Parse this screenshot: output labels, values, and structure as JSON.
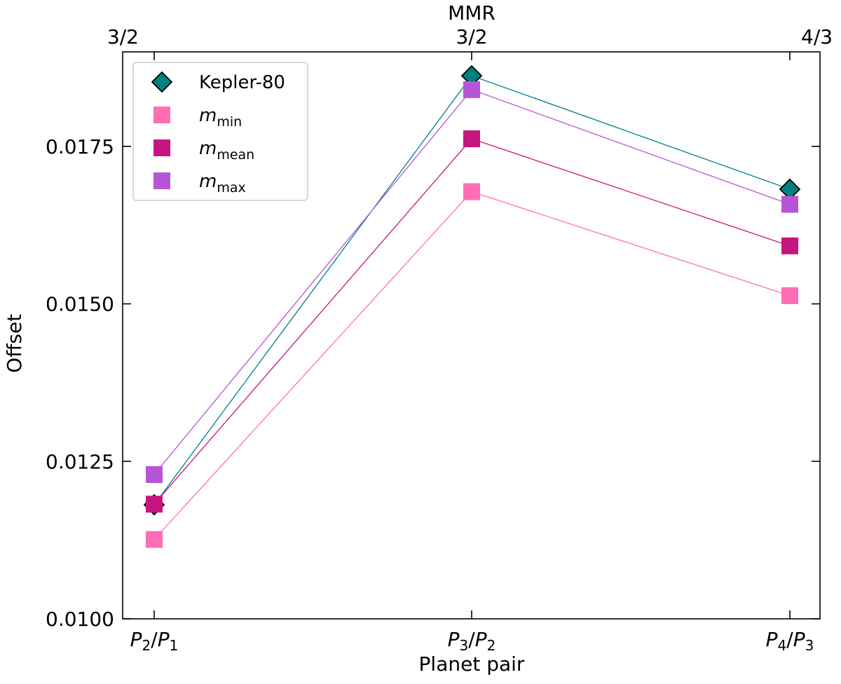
{
  "chart_data": {
    "type": "line",
    "xlabel": "Planet pair",
    "ylabel": "Offset",
    "top_axis_label": "MMR",
    "categories": [
      {
        "base": "P",
        "sub1": "2",
        "sep": "/",
        "base2": "P",
        "sub2": "1"
      },
      {
        "base": "P",
        "sub1": "3",
        "sep": "/",
        "base2": "P",
        "sub2": "2"
      },
      {
        "base": "P",
        "sub1": "4",
        "sep": "/",
        "base2": "P",
        "sub2": "3"
      }
    ],
    "top_ticks": [
      "3/2",
      "3/2",
      "4/3"
    ],
    "ylim": [
      0.01,
      0.019
    ],
    "yticks": [
      "0.0100",
      "0.0125",
      "0.0150",
      "0.0175"
    ],
    "ytick_values": [
      0.01,
      0.0125,
      0.015,
      0.0175
    ],
    "legend_position": "upper-left",
    "grid": false,
    "series": [
      {
        "id": "kepler",
        "name": "Kepler-80",
        "name_main": "Kepler-80",
        "name_sub": "",
        "marker": "diamond",
        "color": "#008080",
        "values": [
          0.01181,
          0.01862,
          0.01682
        ]
      },
      {
        "id": "mmax",
        "name": "m_max",
        "name_main": "m",
        "name_sub": "max",
        "marker": "square",
        "color": "#b656d6",
        "values": [
          0.01229,
          0.0184,
          0.01658
        ]
      },
      {
        "id": "mmean",
        "name": "m_mean",
        "name_main": "m",
        "name_sub": "mean",
        "marker": "square",
        "color": "#c7157f",
        "values": [
          0.01182,
          0.01762,
          0.01592
        ]
      },
      {
        "id": "mmin",
        "name": "m_min",
        "name_main": "m",
        "name_sub": "min",
        "marker": "square",
        "color": "#ff6eb4",
        "values": [
          0.01126,
          0.01678,
          0.01513
        ]
      }
    ],
    "legend_order": [
      "kepler",
      "mmin",
      "mmean",
      "mmax"
    ]
  }
}
